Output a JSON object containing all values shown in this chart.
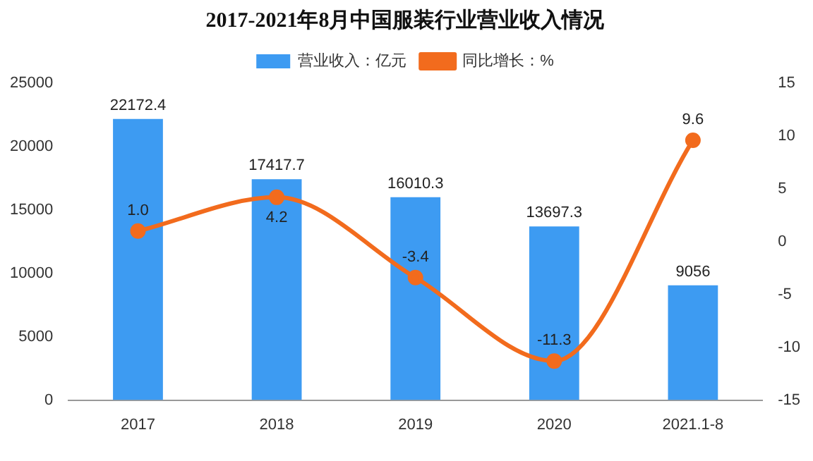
{
  "chart_data": {
    "type": "bar",
    "title": "2017-2021年8月中国服装行业营业收入情况",
    "categories": [
      "2017",
      "2018",
      "2019",
      "2020",
      "2021.1-8"
    ],
    "series": [
      {
        "name": "营业收入：亿元",
        "color": "#3d9bf2",
        "values": [
          22172.4,
          17417.7,
          16010.3,
          13697.3,
          9056
        ],
        "value_labels": [
          "22172.4",
          "17417.7",
          "16010.3",
          "13697.3",
          "9056"
        ]
      },
      {
        "name": "同比增长：%",
        "type": "line",
        "axis": "y2",
        "color": "#f26b1d",
        "values": [
          1.0,
          4.2,
          -3.4,
          -11.3,
          9.6
        ],
        "value_labels": [
          "1.0",
          "4.2",
          "-3.4",
          "-11.3",
          "9.6"
        ]
      }
    ],
    "ylim": [
      0,
      25000
    ],
    "yticks": [
      0,
      5000,
      10000,
      15000,
      20000,
      25000
    ],
    "y2lim": [
      -15,
      15
    ],
    "y2ticks": [
      -15,
      -10,
      -5,
      0,
      5,
      10,
      15
    ],
    "grid": false,
    "legend": "top",
    "marker": "circle",
    "line_style": "solid"
  }
}
